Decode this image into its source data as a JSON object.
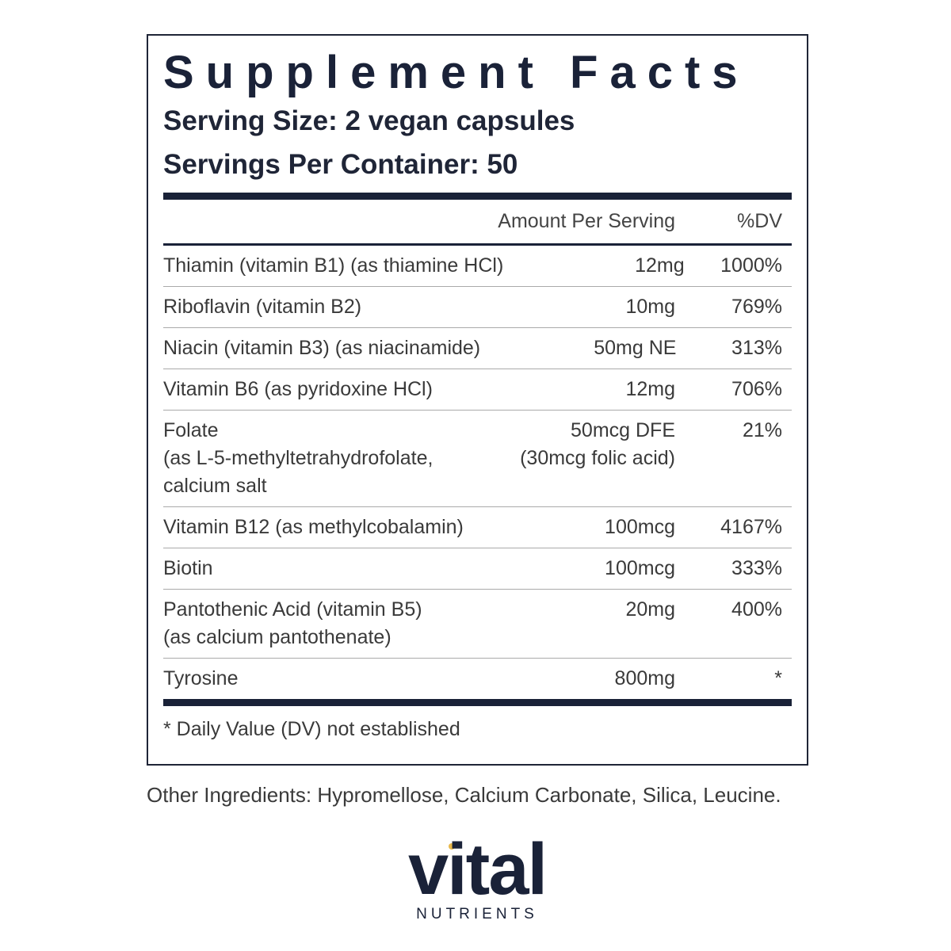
{
  "panel": {
    "title": "Supplement Facts",
    "serving_size": "Serving Size: 2 vegan capsules",
    "servings_per_container": "Servings Per Container: 50",
    "header": {
      "amount": "Amount Per Serving",
      "dv": "%DV"
    },
    "rows": [
      {
        "name": [
          "Thiamin (vitamin B1) (as thiamine HCl)"
        ],
        "amount": [
          "12mg"
        ],
        "dv": "1000%"
      },
      {
        "name": [
          "Riboflavin (vitamin B2)"
        ],
        "amount": [
          "10mg"
        ],
        "dv": "769%"
      },
      {
        "name": [
          "Niacin (vitamin B3) (as niacinamide)"
        ],
        "amount": [
          "50mg NE"
        ],
        "dv": "313%"
      },
      {
        "name": [
          "Vitamin B6 (as pyridoxine HCl)"
        ],
        "amount": [
          "12mg"
        ],
        "dv": "706%"
      },
      {
        "name": [
          "Folate",
          "(as L-5-methyltetrahydrofolate,",
          "calcium salt"
        ],
        "amount": [
          "50mcg DFE",
          "(30mcg folic acid)"
        ],
        "dv": "21%"
      },
      {
        "name": [
          "Vitamin B12 (as methylcobalamin)"
        ],
        "amount": [
          "100mcg"
        ],
        "dv": "4167%"
      },
      {
        "name": [
          "Biotin"
        ],
        "amount": [
          "100mcg"
        ],
        "dv": "333%"
      },
      {
        "name": [
          "Pantothenic Acid (vitamin B5)",
          "(as calcium pantothenate)"
        ],
        "amount": [
          "20mg"
        ],
        "dv": "400%"
      },
      {
        "name": [
          "Tyrosine"
        ],
        "amount": [
          "800mg"
        ],
        "dv": "*"
      }
    ],
    "footnote": "* Daily Value (DV) not established"
  },
  "other_ingredients": "Other Ingredients: Hypromellose, Calcium Carbonate, Silica, Leucine.",
  "logo": {
    "name": "vital",
    "tagline": "NUTRIENTS"
  }
}
